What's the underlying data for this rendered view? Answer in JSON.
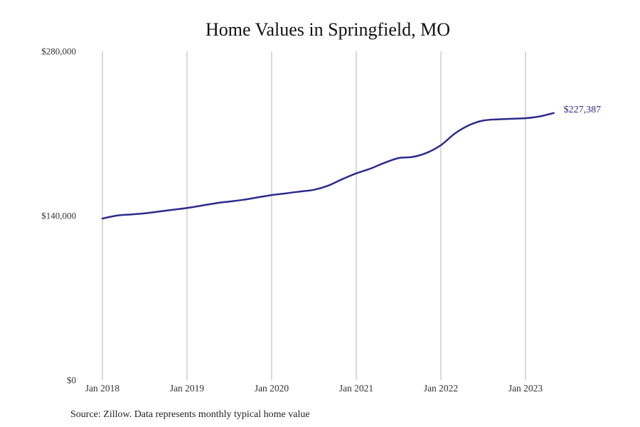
{
  "chart_data": {
    "type": "line",
    "title": "Home Values in Springfield, MO",
    "xlabel": "",
    "ylabel": "",
    "source": "Source: Zillow. Data represents monthly typical home value",
    "ylim": [
      0,
      280000
    ],
    "y_ticks": [
      {
        "value": 0,
        "label": "$0"
      },
      {
        "value": 140000,
        "label": "$140,000"
      },
      {
        "value": 280000,
        "label": "$280,000"
      }
    ],
    "x_ticks": [
      {
        "value": "2018-01",
        "label": "Jan 2018"
      },
      {
        "value": "2019-01",
        "label": "Jan 2019"
      },
      {
        "value": "2020-01",
        "label": "Jan 2020"
      },
      {
        "value": "2021-01",
        "label": "Jan 2021"
      },
      {
        "value": "2022-01",
        "label": "Jan 2022"
      },
      {
        "value": "2023-01",
        "label": "Jan 2023"
      }
    ],
    "grid": {
      "vertical": true,
      "horizontal": false
    },
    "line_color": "#2e2a8c",
    "end_label": "$227,387",
    "series": [
      {
        "points": [
          {
            "x": "2018-01",
            "y": 137500
          },
          {
            "x": "2018-03",
            "y": 140000
          },
          {
            "x": "2018-05",
            "y": 141000
          },
          {
            "x": "2018-07",
            "y": 142000
          },
          {
            "x": "2018-09",
            "y": 143500
          },
          {
            "x": "2018-11",
            "y": 145000
          },
          {
            "x": "2019-01",
            "y": 146500
          },
          {
            "x": "2019-03",
            "y": 148500
          },
          {
            "x": "2019-05",
            "y": 150500
          },
          {
            "x": "2019-07",
            "y": 152000
          },
          {
            "x": "2019-09",
            "y": 153500
          },
          {
            "x": "2019-11",
            "y": 155500
          },
          {
            "x": "2020-01",
            "y": 157500
          },
          {
            "x": "2020-03",
            "y": 159000
          },
          {
            "x": "2020-05",
            "y": 160500
          },
          {
            "x": "2020-07",
            "y": 162000
          },
          {
            "x": "2020-09",
            "y": 165500
          },
          {
            "x": "2020-11",
            "y": 171000
          },
          {
            "x": "2021-01",
            "y": 176000
          },
          {
            "x": "2021-03",
            "y": 180000
          },
          {
            "x": "2021-05",
            "y": 185000
          },
          {
            "x": "2021-07",
            "y": 189000
          },
          {
            "x": "2021-09",
            "y": 190000
          },
          {
            "x": "2021-11",
            "y": 193500
          },
          {
            "x": "2022-01",
            "y": 200000
          },
          {
            "x": "2022-03",
            "y": 210000
          },
          {
            "x": "2022-05",
            "y": 217000
          },
          {
            "x": "2022-07",
            "y": 221000
          },
          {
            "x": "2022-09",
            "y": 222000
          },
          {
            "x": "2022-11",
            "y": 222500
          },
          {
            "x": "2023-01",
            "y": 223000
          },
          {
            "x": "2023-03",
            "y": 224500
          },
          {
            "x": "2023-05",
            "y": 227387
          }
        ]
      }
    ]
  }
}
